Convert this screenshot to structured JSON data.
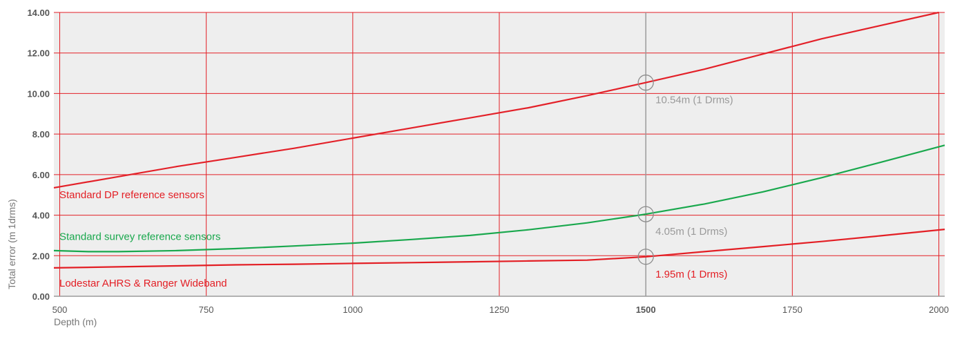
{
  "chart_data": {
    "type": "line",
    "xlabel": "Depth (m)",
    "ylabel": "Total error (m 1drms)",
    "xlim": [
      490,
      2010
    ],
    "ylim": [
      0,
      14
    ],
    "x_ticks": [
      {
        "value": 500,
        "label": "500"
      },
      {
        "value": 750,
        "label": "750"
      },
      {
        "value": 1000,
        "label": "1000"
      },
      {
        "value": 1250,
        "label": "1250"
      },
      {
        "value": 1500,
        "label": "1500"
      },
      {
        "value": 1750,
        "label": "1750"
      },
      {
        "value": 2000,
        "label": "2000"
      }
    ],
    "y_ticks": [
      {
        "value": 0,
        "label": "0.00"
      },
      {
        "value": 2,
        "label": "2.00"
      },
      {
        "value": 4,
        "label": "4.00"
      },
      {
        "value": 6,
        "label": "6.00"
      },
      {
        "value": 8,
        "label": "8.00"
      },
      {
        "value": 10,
        "label": "10.00"
      },
      {
        "value": 12,
        "label": "12.00"
      },
      {
        "value": 14,
        "label": "14.00"
      }
    ],
    "grid": true,
    "series": [
      {
        "name": "Standard DP reference sensors",
        "color": "#e32028",
        "x": [
          490,
          600,
          700,
          800,
          900,
          1000,
          1100,
          1200,
          1300,
          1400,
          1500,
          1600,
          1700,
          1800,
          1900,
          2000
        ],
        "y": [
          5.35,
          5.9,
          6.4,
          6.85,
          7.3,
          7.8,
          8.3,
          8.8,
          9.3,
          9.9,
          10.54,
          11.2,
          11.95,
          12.7,
          13.35,
          14.0
        ]
      },
      {
        "name": "Standard survey reference sensors",
        "color": "#19a84d",
        "x": [
          490,
          550,
          600,
          700,
          800,
          900,
          1000,
          1100,
          1200,
          1300,
          1400,
          1500,
          1600,
          1700,
          1800,
          1900,
          2010
        ],
        "y": [
          2.25,
          2.2,
          2.2,
          2.25,
          2.35,
          2.48,
          2.62,
          2.8,
          3.0,
          3.28,
          3.62,
          4.05,
          4.55,
          5.15,
          5.85,
          6.6,
          7.45
        ]
      },
      {
        "name": "Lodestar AHRS & Ranger Wideband",
        "color": "#e31e24",
        "x": [
          490,
          600,
          700,
          800,
          900,
          1000,
          1100,
          1200,
          1300,
          1400,
          1500,
          1600,
          1700,
          1800,
          1900,
          2010
        ],
        "y": [
          1.4,
          1.45,
          1.5,
          1.55,
          1.58,
          1.62,
          1.66,
          1.7,
          1.74,
          1.78,
          1.95,
          2.2,
          2.45,
          2.7,
          2.98,
          3.3
        ]
      }
    ],
    "reference_line": {
      "x": 1500,
      "color": "#9a9a9a"
    },
    "annotations": [
      {
        "x": 1500,
        "y": 10.54,
        "text": "10.54m (1 Drms)",
        "color": "#9a9a9a"
      },
      {
        "x": 1500,
        "y": 4.05,
        "text": "4.05m (1 Drms)",
        "color": "#9a9a9a"
      },
      {
        "x": 1500,
        "y": 1.95,
        "text": "1.95m (1 Drms)",
        "color": "#e31e24"
      }
    ],
    "series_labels": [
      {
        "text": "Standard DP reference sensors",
        "color": "#e31e24"
      },
      {
        "text": "Standard survey reference sensors",
        "color": "#19a84d"
      },
      {
        "text": "Lodestar AHRS & Ranger Wideband",
        "color": "#e31e24"
      }
    ],
    "colors": {
      "plot_background": "#eeeeee",
      "grid": "#e31e24",
      "axis": "#9a9a9a"
    }
  }
}
